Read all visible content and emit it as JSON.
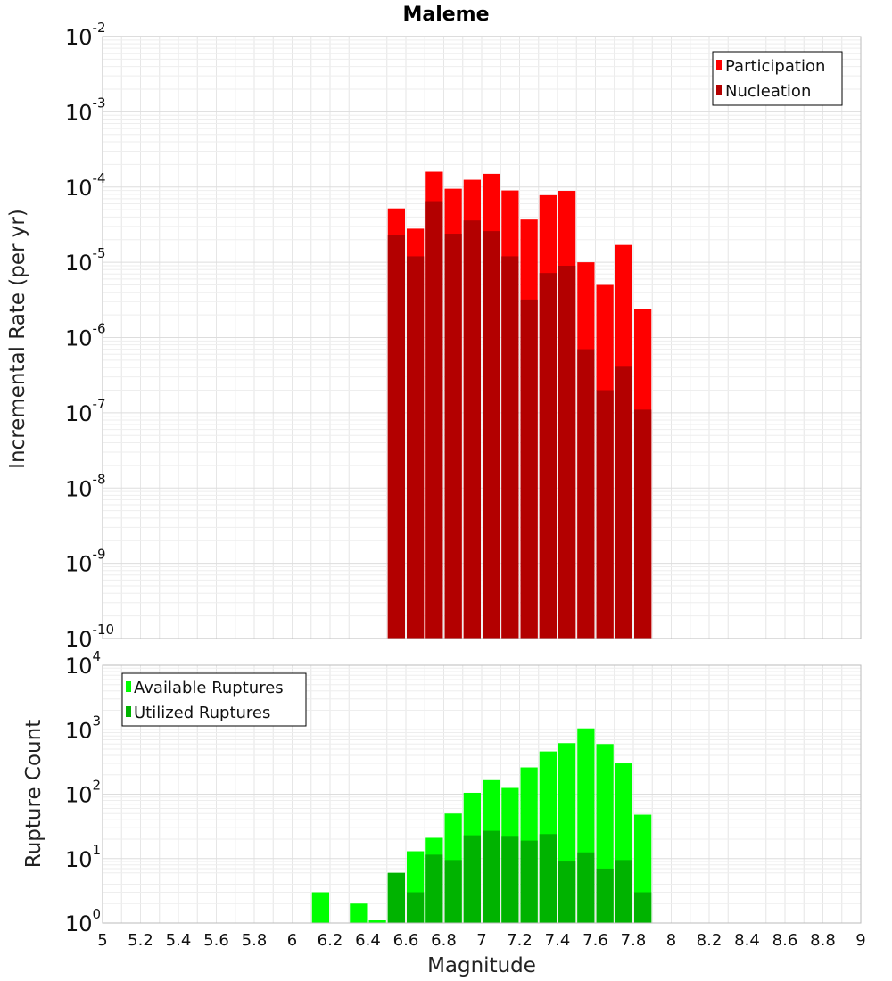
{
  "chart_data": [
    {
      "type": "bar",
      "title": "Maleme",
      "ylabel": "Incremental Rate (per yr)",
      "xlabel": "",
      "y_scale": "log",
      "ylim": [
        1e-10,
        0.01
      ],
      "xlim": [
        5,
        9
      ],
      "grid": true,
      "legend_position": "top-right",
      "x": [
        6.55,
        6.65,
        6.75,
        6.85,
        6.95,
        7.05,
        7.15,
        7.25,
        7.35,
        7.45,
        7.55,
        7.65,
        7.75,
        7.85
      ],
      "series": [
        {
          "name": "Participation",
          "color": "#ff0000",
          "values": [
            5.2e-05,
            2.8e-05,
            0.00016,
            9.5e-05,
            0.000125,
            0.00015,
            9e-05,
            3.7e-05,
            7.8e-05,
            8.9e-05,
            1e-05,
            5e-06,
            1.7e-05,
            2.4e-06
          ]
        },
        {
          "name": "Nucleation",
          "color": "#b30000",
          "values": [
            2.3e-05,
            1.2e-05,
            6.5e-05,
            2.4e-05,
            3.6e-05,
            2.6e-05,
            1.2e-05,
            3.2e-06,
            7.2e-06,
            9e-06,
            7e-07,
            2e-07,
            4.2e-07,
            1.1e-07
          ]
        }
      ]
    },
    {
      "type": "bar",
      "title": "",
      "ylabel": "Rupture Count",
      "xlabel": "Magnitude",
      "y_scale": "log",
      "ylim": [
        1,
        10000
      ],
      "xlim": [
        5,
        9
      ],
      "grid": true,
      "legend_position": "top-left",
      "x": [
        6.15,
        6.35,
        6.45,
        6.55,
        6.65,
        6.75,
        6.85,
        6.95,
        7.05,
        7.15,
        7.25,
        7.35,
        7.45,
        7.55,
        7.65,
        7.75,
        7.85
      ],
      "series": [
        {
          "name": "Available Ruptures",
          "color": "#00ff00",
          "values": [
            3,
            2,
            1.1,
            6,
            13,
            21,
            50,
            105,
            165,
            125,
            260,
            460,
            620,
            1050,
            600,
            300,
            48
          ]
        },
        {
          "name": "Utilized Ruptures",
          "color": "#00b300",
          "values": [
            null,
            null,
            null,
            6,
            3,
            11.5,
            9.5,
            23,
            27,
            22.5,
            19,
            24,
            9,
            12.5,
            7,
            9.5,
            3
          ]
        }
      ]
    }
  ],
  "x_ticks": [
    "5",
    "5.2",
    "5.4",
    "5.6",
    "5.8",
    "6",
    "6.2",
    "6.4",
    "6.6",
    "6.8",
    "7",
    "7.2",
    "7.4",
    "7.6",
    "7.8",
    "8",
    "8.2",
    "8.4",
    "8.6",
    "8.8",
    "9"
  ]
}
